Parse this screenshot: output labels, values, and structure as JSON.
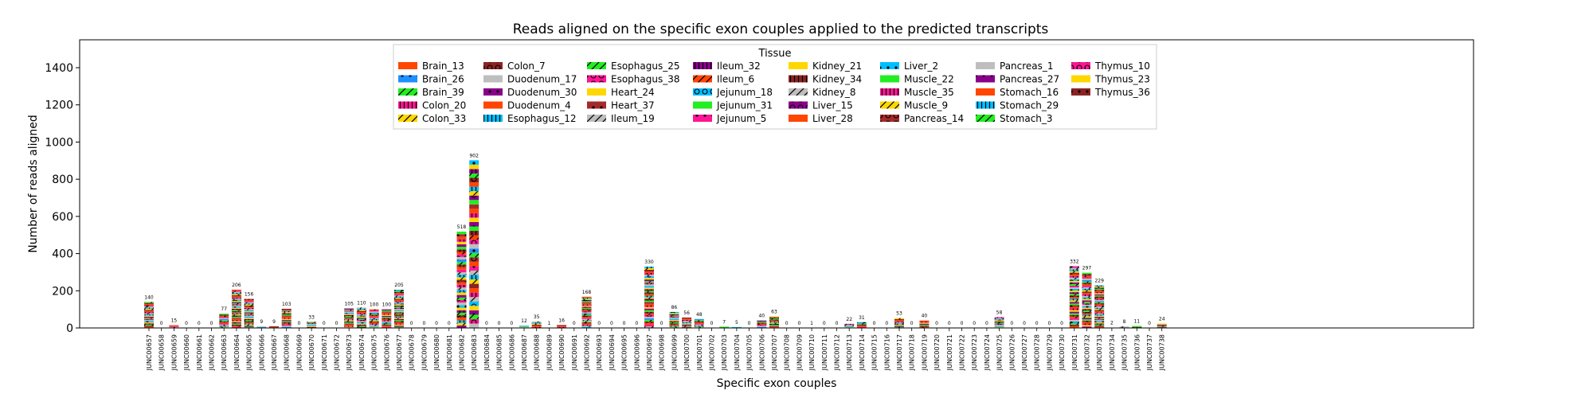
{
  "chart_data": {
    "type": "bar",
    "stacked": true,
    "title": "Reads aligned on the specific exon couples applied to the predicted transcripts",
    "xlabel": "Specific exon couples",
    "ylabel": "Number of reads aligned",
    "ylim": [
      0,
      1550
    ],
    "yticks": [
      0,
      200,
      400,
      600,
      800,
      1000,
      1200,
      1400
    ],
    "grid": false,
    "legend_title": "Tissue",
    "legend_position": "top-center",
    "categories": [
      "JUNC00657",
      "JUNC00658",
      "JUNC00659",
      "JUNC00660",
      "JUNC00661",
      "JUNC00662",
      "JUNC00663",
      "JUNC00664",
      "JUNC00665",
      "JUNC00666",
      "JUNC00667",
      "JUNC00668",
      "JUNC00669",
      "JUNC00670",
      "JUNC00671",
      "JUNC00672",
      "JUNC00673",
      "JUNC00674",
      "JUNC00675",
      "JUNC00676",
      "JUNC00677",
      "JUNC00678",
      "JUNC00679",
      "JUNC00680",
      "JUNC00681",
      "JUNC00682",
      "JUNC00683",
      "JUNC00684",
      "JUNC00685",
      "JUNC00686",
      "JUNC00687",
      "JUNC00688",
      "JUNC00689",
      "JUNC00690",
      "JUNC00691",
      "JUNC00692",
      "JUNC00693",
      "JUNC00694",
      "JUNC00695",
      "JUNC00696",
      "JUNC00697",
      "JUNC00698",
      "JUNC00699",
      "JUNC00700",
      "JUNC00701",
      "JUNC00702",
      "JUNC00703",
      "JUNC00704",
      "JUNC00705",
      "JUNC00706",
      "JUNC00707",
      "JUNC00708",
      "JUNC00709",
      "JUNC00710",
      "JUNC00711",
      "JUNC00712",
      "JUNC00713",
      "JUNC00714",
      "JUNC00715",
      "JUNC00716",
      "JUNC00717",
      "JUNC00718",
      "JUNC00719",
      "JUNC00720",
      "JUNC00721",
      "JUNC00722",
      "JUNC00723",
      "JUNC00724",
      "JUNC00725",
      "JUNC00726",
      "JUNC00727",
      "JUNC00728",
      "JUNC00729",
      "JUNC00730",
      "JUNC00731",
      "JUNC00732",
      "JUNC00733",
      "JUNC00734",
      "JUNC00735",
      "JUNC00736",
      "JUNC00737",
      "JUNC00738"
    ],
    "totals": [
      140,
      0,
      15,
      0,
      0,
      0,
      77,
      206,
      156,
      9,
      9,
      103,
      0,
      33,
      0,
      0,
      105,
      110,
      100,
      100,
      205,
      0,
      0,
      0,
      0,
      518,
      902,
      0,
      0,
      0,
      12,
      35,
      1,
      16,
      0,
      168,
      0,
      0,
      0,
      0,
      330,
      0,
      86,
      56,
      48,
      0,
      7,
      5,
      0,
      40,
      63,
      0,
      0,
      1,
      0,
      0,
      22,
      31,
      0,
      0,
      53,
      0,
      40,
      0,
      0,
      0,
      0,
      0,
      58,
      0,
      0,
      0,
      0,
      0,
      332,
      297,
      229,
      2,
      8,
      11,
      0,
      24
    ],
    "series": [
      {
        "name": "Brain_13",
        "color": "#ff4500",
        "hatch": "none"
      },
      {
        "name": "Brain_26",
        "color": "#1e90ff",
        "hatch": "dot"
      },
      {
        "name": "Brain_39",
        "color": "#22ee22",
        "hatch": "slash"
      },
      {
        "name": "Colon_20",
        "color": "#ff1493",
        "hatch": "bars"
      },
      {
        "name": "Colon_33",
        "color": "#ffd700",
        "hatch": "slash"
      },
      {
        "name": "Colon_7",
        "color": "#8b2323",
        "hatch": "circle"
      },
      {
        "name": "Duodenum_17",
        "color": "#bebebe",
        "hatch": "none"
      },
      {
        "name": "Duodenum_30",
        "color": "#8b008b",
        "hatch": "dot"
      },
      {
        "name": "Duodenum_4",
        "color": "#ff4500",
        "hatch": "none"
      },
      {
        "name": "Esophagus_12",
        "color": "#00bfff",
        "hatch": "bars"
      },
      {
        "name": "Esophagus_25",
        "color": "#22ee22",
        "hatch": "slash"
      },
      {
        "name": "Esophagus_38",
        "color": "#ff1493",
        "hatch": "circle"
      },
      {
        "name": "Heart_24",
        "color": "#ffd700",
        "hatch": "none"
      },
      {
        "name": "Heart_37",
        "color": "#a52a2a",
        "hatch": "dot"
      },
      {
        "name": "Ileum_19",
        "color": "#bebebe",
        "hatch": "slash"
      },
      {
        "name": "Ileum_32",
        "color": "#8b008b",
        "hatch": "bars"
      },
      {
        "name": "Ileum_6",
        "color": "#ff4500",
        "hatch": "slash"
      },
      {
        "name": "Jejunum_18",
        "color": "#00bfff",
        "hatch": "circle"
      },
      {
        "name": "Jejunum_31",
        "color": "#22ee22",
        "hatch": "none"
      },
      {
        "name": "Jejunum_5",
        "color": "#ff1493",
        "hatch": "dot"
      },
      {
        "name": "Kidney_21",
        "color": "#ffd700",
        "hatch": "none"
      },
      {
        "name": "Kidney_34",
        "color": "#8b2323",
        "hatch": "bars"
      },
      {
        "name": "Kidney_8",
        "color": "#bebebe",
        "hatch": "slash"
      },
      {
        "name": "Liver_15",
        "color": "#8b008b",
        "hatch": "circle"
      },
      {
        "name": "Liver_28",
        "color": "#ff4500",
        "hatch": "none"
      },
      {
        "name": "Liver_2",
        "color": "#00bfff",
        "hatch": "dot"
      },
      {
        "name": "Muscle_22",
        "color": "#22ee22",
        "hatch": "none"
      },
      {
        "name": "Muscle_35",
        "color": "#ff1493",
        "hatch": "bars"
      },
      {
        "name": "Muscle_9",
        "color": "#ffd700",
        "hatch": "slash"
      },
      {
        "name": "Pancreas_14",
        "color": "#a52a2a",
        "hatch": "circle"
      },
      {
        "name": "Pancreas_1",
        "color": "#bebebe",
        "hatch": "none"
      },
      {
        "name": "Pancreas_27",
        "color": "#8b008b",
        "hatch": "dot"
      },
      {
        "name": "Stomach_16",
        "color": "#ff4500",
        "hatch": "none"
      },
      {
        "name": "Stomach_29",
        "color": "#00bfff",
        "hatch": "bars"
      },
      {
        "name": "Stomach_3",
        "color": "#22ee22",
        "hatch": "slash"
      },
      {
        "name": "Thymus_10",
        "color": "#ff1493",
        "hatch": "circle"
      },
      {
        "name": "Thymus_23",
        "color": "#ffd700",
        "hatch": "none"
      },
      {
        "name": "Thymus_36",
        "color": "#8b2323",
        "hatch": "dot"
      }
    ]
  }
}
